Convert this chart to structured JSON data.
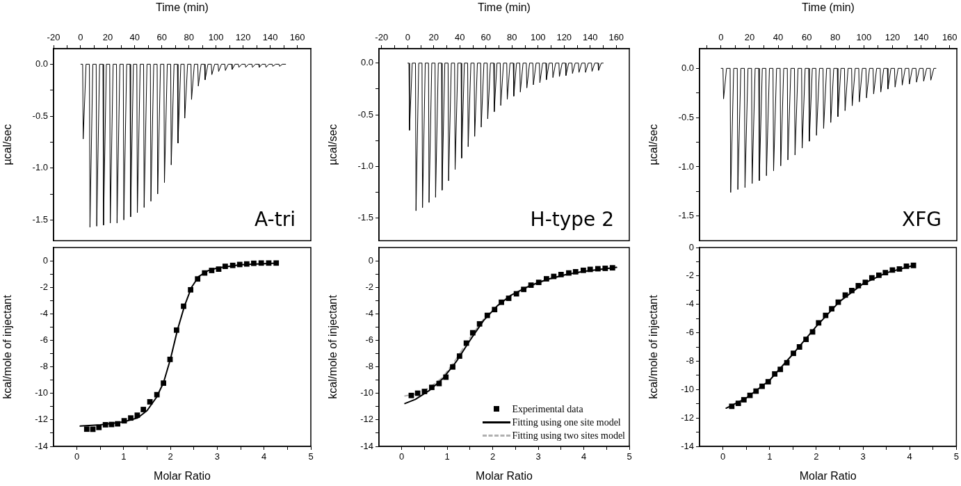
{
  "chart_data": [
    {
      "type": "line",
      "xlabel": "Time (min)",
      "ylabel": "µcal/sec",
      "annotations": [
        "A-tri"
      ],
      "xlim": [
        -20,
        170
      ],
      "ylim": [
        -1.7,
        0.15
      ],
      "xticks": [
        -20,
        {
          "value": -10,
          "label": null
        },
        0,
        {
          "value": 10,
          "label": null
        },
        20,
        {
          "value": 30,
          "label": null
        },
        40,
        {
          "value": 50,
          "label": null
        },
        60,
        {
          "value": 70,
          "label": null
        },
        80,
        {
          "value": 90,
          "label": null
        },
        100,
        {
          "value": 110,
          "label": null
        },
        120,
        {
          "value": 130,
          "label": null
        },
        140,
        {
          "value": 150,
          "label": null
        },
        160
      ],
      "yticks": [
        {
          "value": -1.5,
          "label": "-1.5"
        },
        {
          "value": -1.25,
          "label": null
        },
        {
          "value": -1,
          "label": "-1.0"
        },
        {
          "value": -0.75,
          "label": null
        },
        {
          "value": -0.5,
          "label": "-0.5"
        },
        {
          "value": -0.25,
          "label": null
        },
        {
          "value": 0,
          "label": "0.0"
        }
      ],
      "color": "#000000",
      "marker": "none",
      "x": [
        0,
        1.5,
        1.9,
        4,
        6.5,
        6.9,
        9,
        11.5,
        11.9,
        14,
        16.5,
        16.9,
        19,
        21.5,
        21.9,
        24,
        26.5,
        26.9,
        29,
        31.5,
        31.9,
        34,
        36.5,
        36.9,
        39,
        41.5,
        41.9,
        44,
        46.5,
        46.9,
        49,
        51.5,
        51.9,
        54,
        56.5,
        56.9,
        59,
        61.5,
        61.9,
        64,
        66.5,
        66.9,
        69,
        71.5,
        71.9,
        74,
        76.5,
        76.9,
        79,
        81.5,
        81.9,
        84,
        86.5,
        86.9,
        89,
        91.5,
        91.9,
        94,
        96.5,
        96.9,
        99,
        101.5,
        101.9,
        104,
        106.5,
        106.9,
        109,
        111.5,
        111.9,
        114,
        116.5,
        116.9,
        119,
        121.5,
        121.9,
        124,
        126.5,
        126.9,
        129,
        131.5,
        131.9,
        134,
        136.5,
        136.9,
        139,
        141.5,
        141.9,
        144,
        146.5,
        146.9,
        149,
        151.4
      ],
      "values": [
        0,
        0,
        -0.72,
        0,
        0,
        -1.57,
        0,
        0,
        -1.56,
        0,
        0,
        -1.55,
        0,
        0,
        -1.53,
        0,
        0,
        -1.53,
        0,
        0,
        -1.5,
        0,
        0,
        -1.47,
        0,
        0,
        -1.43,
        0,
        0,
        -1.38,
        0,
        0,
        -1.32,
        0,
        0,
        -1.25,
        0,
        0,
        -1.14,
        0,
        0,
        -0.97,
        0,
        0,
        -0.76,
        0,
        0,
        -0.52,
        0,
        0,
        -0.34,
        0,
        0,
        -0.21,
        0,
        0,
        -0.15,
        0,
        0,
        -0.1,
        0,
        0,
        -0.07,
        0,
        0,
        -0.06,
        0,
        0,
        -0.05,
        0,
        0,
        -0.03,
        0,
        0,
        -0.03,
        0,
        0,
        -0.03,
        0,
        0,
        -0.03,
        0,
        0,
        -0.03,
        0,
        0,
        -0.02,
        0,
        0,
        -0.02,
        0,
        0
      ]
    },
    {
      "type": "line",
      "xlabel": "Time (min)",
      "ylabel": "µcal/sec",
      "annotations": [
        "H-type 2"
      ],
      "xlim": [
        -22,
        170
      ],
      "ylim": [
        -1.72,
        0.14
      ],
      "xticks": [
        -20,
        {
          "value": -10,
          "label": null
        },
        0,
        {
          "value": 10,
          "label": null
        },
        20,
        {
          "value": 30,
          "label": null
        },
        40,
        {
          "value": 50,
          "label": null
        },
        60,
        {
          "value": 70,
          "label": null
        },
        80,
        {
          "value": 90,
          "label": null
        },
        100,
        {
          "value": 110,
          "label": null
        },
        120,
        {
          "value": 130,
          "label": null
        },
        140,
        {
          "value": 150,
          "label": null
        },
        160
      ],
      "yticks": [
        {
          "value": -1.5,
          "label": "-1.5"
        },
        {
          "value": -1.25,
          "label": null
        },
        {
          "value": -1,
          "label": "-1.0"
        },
        {
          "value": -0.75,
          "label": null
        },
        {
          "value": -0.5,
          "label": "-0.5"
        },
        {
          "value": -0.25,
          "label": null
        },
        {
          "value": 0,
          "label": "0.0"
        }
      ],
      "color": "#000000",
      "marker": "none",
      "x": [
        0,
        1,
        1.4,
        3.5,
        6,
        6.4,
        8.5,
        11,
        11.4,
        13.5,
        16,
        16.4,
        18.5,
        21,
        21.4,
        23.5,
        26,
        26.4,
        28.5,
        31,
        31.4,
        33.5,
        36,
        36.4,
        38.5,
        41,
        41.4,
        43.5,
        46,
        46.4,
        48.5,
        51,
        51.4,
        53.5,
        56,
        56.4,
        58.5,
        61,
        61.4,
        63.5,
        66,
        66.4,
        68.5,
        71,
        71.4,
        73.5,
        76,
        76.4,
        78.5,
        81,
        81.4,
        83.5,
        86,
        86.4,
        88.5,
        91,
        91.4,
        93.5,
        96,
        96.4,
        98.5,
        101,
        101.4,
        103.5,
        106,
        106.4,
        108.5,
        111,
        111.4,
        113.5,
        116,
        116.4,
        118.5,
        121,
        121.4,
        123.5,
        126,
        126.4,
        128.5,
        131,
        131.4,
        133.5,
        136,
        136.4,
        138.5,
        141,
        141.4,
        143.5,
        146,
        146.4,
        148.5,
        150
      ],
      "values": [
        0,
        0,
        -0.65,
        0,
        0,
        -1.43,
        0,
        0,
        -1.4,
        0,
        0,
        -1.35,
        0,
        0,
        -1.3,
        0,
        0,
        -1.23,
        0,
        0,
        -1.14,
        0,
        0,
        -1.03,
        0,
        0,
        -0.92,
        0,
        0,
        -0.81,
        0,
        0,
        -0.71,
        0,
        0,
        -0.62,
        0,
        0,
        -0.54,
        0,
        0,
        -0.47,
        0,
        0,
        -0.41,
        0,
        0,
        -0.35,
        0,
        0,
        -0.32,
        0,
        0,
        -0.28,
        0,
        0,
        -0.24,
        0,
        0,
        -0.21,
        0,
        0,
        -0.19,
        0,
        0,
        -0.16,
        0,
        0,
        -0.14,
        0,
        0,
        -0.13,
        0,
        0,
        -0.12,
        0,
        0,
        -0.1,
        0,
        0,
        -0.09,
        0,
        0,
        -0.09,
        0,
        0,
        -0.08,
        0,
        0,
        -0.07,
        0,
        0
      ]
    },
    {
      "type": "line",
      "xlabel": "Time (min)",
      "ylabel": "µcal/sec",
      "annotations": [
        "XFG"
      ],
      "xlim": [
        -15,
        165
      ],
      "ylim": [
        -1.75,
        0.2
      ],
      "xticks": [
        {
          "value": -10,
          "label": null
        },
        0,
        {
          "value": 10,
          "label": null
        },
        20,
        {
          "value": 30,
          "label": null
        },
        40,
        {
          "value": 50,
          "label": null
        },
        60,
        {
          "value": 70,
          "label": null
        },
        80,
        {
          "value": 90,
          "label": null
        },
        100,
        {
          "value": 110,
          "label": null
        },
        120,
        {
          "value": 130,
          "label": null
        },
        140,
        {
          "value": 150,
          "label": null
        },
        160
      ],
      "yticks": [
        {
          "value": -1.5,
          "label": "-1.5"
        },
        {
          "value": -1.25,
          "label": null
        },
        {
          "value": -1,
          "label": "-1.0"
        },
        {
          "value": -0.75,
          "label": null
        },
        {
          "value": -0.5,
          "label": "-0.5"
        },
        {
          "value": -0.25,
          "label": null
        },
        {
          "value": 0,
          "label": "0.0"
        }
      ],
      "color": "#000000",
      "marker": "none",
      "x": [
        0,
        1.4,
        1.8,
        3.9,
        6.4,
        6.8,
        8.9,
        11.4,
        11.8,
        13.9,
        16.4,
        16.8,
        18.9,
        21.4,
        21.8,
        23.9,
        26.4,
        26.8,
        28.9,
        31.4,
        31.8,
        33.9,
        36.4,
        36.8,
        38.9,
        41.4,
        41.8,
        43.9,
        46.4,
        46.8,
        48.9,
        51.4,
        51.8,
        53.9,
        56.4,
        56.8,
        58.9,
        61.4,
        61.8,
        63.9,
        66.4,
        66.8,
        68.9,
        71.4,
        71.8,
        73.9,
        76.4,
        76.8,
        78.9,
        81.4,
        81.8,
        83.9,
        86.4,
        86.8,
        88.9,
        91.4,
        91.8,
        93.9,
        96.4,
        96.8,
        98.9,
        101.4,
        101.8,
        103.9,
        106.4,
        106.8,
        108.9,
        111.4,
        111.8,
        113.9,
        116.4,
        116.8,
        118.9,
        121.4,
        121.8,
        123.9,
        126.4,
        126.8,
        128.9,
        131.4,
        131.8,
        133.9,
        136.4,
        136.8,
        138.9,
        141.4,
        141.8,
        143.9,
        146.4,
        146.8,
        148.9,
        150.4
      ],
      "values": [
        0,
        0,
        -0.31,
        0,
        0,
        -1.26,
        0,
        0,
        -1.23,
        0,
        0,
        -1.21,
        0,
        0,
        -1.17,
        0,
        0,
        -1.14,
        0,
        0,
        -1.09,
        0,
        0,
        -1.04,
        0,
        0,
        -0.99,
        0,
        0,
        -0.93,
        0,
        0,
        -0.88,
        0,
        0,
        -0.81,
        0,
        0,
        -0.74,
        0,
        0,
        -0.68,
        0,
        0,
        -0.61,
        0,
        0,
        -0.55,
        0,
        0,
        -0.49,
        0,
        0,
        -0.43,
        0,
        0,
        -0.38,
        0,
        0,
        -0.34,
        0,
        0,
        -0.3,
        0,
        0,
        -0.26,
        0,
        0,
        -0.24,
        0,
        0,
        -0.21,
        0,
        0,
        -0.19,
        0,
        0,
        -0.17,
        0,
        0,
        -0.16,
        0,
        0,
        -0.14,
        0,
        0,
        -0.13,
        0,
        0,
        -0.12,
        0,
        0
      ]
    },
    {
      "type": "scatter",
      "xlabel": "Molar Ratio",
      "ylabel": "kcal/mole of injectant",
      "xlim": [
        -0.5,
        5
      ],
      "ylim": [
        -14,
        1
      ],
      "xticks": [
        0,
        {
          "value": 0.5,
          "label": null
        },
        1,
        {
          "value": 1.5,
          "label": null
        },
        2,
        {
          "value": 2.5,
          "label": null
        },
        3,
        {
          "value": 3.5,
          "label": null
        },
        4,
        {
          "value": 4.5,
          "label": null
        },
        5
      ],
      "yticks": [
        -14,
        {
          "value": -13,
          "label": null
        },
        -12,
        {
          "value": -11,
          "label": null
        },
        -10,
        {
          "value": -9,
          "label": null
        },
        -8,
        {
          "value": -7,
          "label": null
        },
        -6,
        {
          "value": -5,
          "label": null
        },
        -4,
        {
          "value": -3,
          "label": null
        },
        -2,
        {
          "value": -1,
          "label": null
        },
        0
      ],
      "series": [
        {
          "type": "scatter",
          "color": "#000000",
          "marker": "square",
          "x": [
            0.21,
            0.34,
            0.47,
            0.61,
            0.74,
            0.87,
            1.01,
            1.15,
            1.29,
            1.42,
            1.56,
            1.71,
            1.85,
            1.99,
            2.13,
            2.28,
            2.43,
            2.58,
            2.73,
            2.88,
            3.03,
            3.17,
            3.33,
            3.48,
            3.63,
            3.78,
            3.94,
            4.1,
            4.26
          ],
          "values": [
            -12.7,
            -12.71,
            -12.57,
            -12.37,
            -12.35,
            -12.3,
            -12.07,
            -11.86,
            -11.65,
            -11.22,
            -10.64,
            -10.1,
            -9.23,
            -7.44,
            -5.23,
            -3.43,
            -2.19,
            -1.37,
            -0.92,
            -0.73,
            -0.63,
            -0.42,
            -0.35,
            -0.28,
            -0.24,
            -0.19,
            -0.17,
            -0.17,
            -0.17
          ]
        },
        {
          "type": "line",
          "color": "#000000",
          "x": [
            0.07,
            0.5,
            1.0,
            1.3,
            1.5,
            1.7,
            1.85,
            2.0,
            2.15,
            2.3,
            2.45,
            2.6,
            2.8,
            3.0,
            3.5,
            4.26
          ],
          "values": [
            -12.47,
            -12.38,
            -12.15,
            -11.85,
            -11.3,
            -10.3,
            -9.2,
            -7.4,
            -5.2,
            -3.4,
            -2.0,
            -1.2,
            -0.75,
            -0.55,
            -0.3,
            -0.18
          ]
        }
      ]
    },
    {
      "type": "scatter",
      "xlabel": "Molar Ratio",
      "ylabel": "kcal/mole of injectant",
      "xlim": [
        -0.5,
        5
      ],
      "ylim": [
        -14,
        1
      ],
      "legend": "bottom right",
      "xticks": [
        0,
        {
          "value": 0.5,
          "label": null
        },
        1,
        {
          "value": 1.5,
          "label": null
        },
        2,
        {
          "value": 2.5,
          "label": null
        },
        3,
        {
          "value": 3.5,
          "label": null
        },
        4,
        {
          "value": 4.5,
          "label": null
        },
        5
      ],
      "yticks": [
        -14,
        {
          "value": -13,
          "label": null
        },
        -12,
        {
          "value": -11,
          "label": null
        },
        -10,
        {
          "value": -9,
          "label": null
        },
        -8,
        {
          "value": -7,
          "label": null
        },
        -6,
        {
          "value": -5,
          "label": null
        },
        -4,
        {
          "value": -3,
          "label": null
        },
        -2,
        {
          "value": -1,
          "label": null
        },
        0
      ],
      "series": [
        {
          "type": "scatter",
          "name": "Experimental data",
          "color": "#000000",
          "marker": "square",
          "x": [
            0.21,
            0.35,
            0.5,
            0.66,
            0.82,
            0.97,
            1.12,
            1.27,
            1.42,
            1.56,
            1.71,
            1.88,
            2.04,
            2.19,
            2.35,
            2.52,
            2.68,
            2.84,
            3.01,
            3.18,
            3.34,
            3.5,
            3.67,
            3.82,
            3.99,
            4.14,
            4.31,
            4.47,
            4.63
          ],
          "values": [
            -10.16,
            -9.99,
            -9.86,
            -9.55,
            -9.26,
            -8.78,
            -8.01,
            -7.19,
            -6.21,
            -5.43,
            -4.76,
            -4.12,
            -3.68,
            -3.13,
            -2.83,
            -2.49,
            -2.16,
            -1.84,
            -1.63,
            -1.36,
            -1.18,
            -1.04,
            -0.92,
            -0.83,
            -0.72,
            -0.65,
            -0.6,
            -0.57,
            -0.53
          ]
        },
        {
          "type": "line",
          "name": "Fitting using one site model",
          "color": "#000000",
          "line_style": "solid",
          "x": [
            0.07,
            0.3,
            0.6,
            0.9,
            1.2,
            1.5,
            1.8,
            2.1,
            2.4,
            2.8,
            3.2,
            3.6,
            4.0,
            4.72
          ],
          "values": [
            -10.77,
            -10.45,
            -9.8,
            -8.9,
            -7.6,
            -6.0,
            -4.5,
            -3.4,
            -2.6,
            -1.9,
            -1.4,
            -1.05,
            -0.8,
            -0.5
          ]
        },
        {
          "type": "line",
          "name": "Fitting using two sites model",
          "color": "#b0b0b0",
          "line_style": "dashed",
          "x": [
            0.07,
            0.3,
            0.6,
            0.9,
            1.2,
            1.5,
            1.8,
            2.1,
            2.4,
            2.8,
            3.2,
            3.6,
            4.0,
            4.72
          ],
          "values": [
            -10.2,
            -10.05,
            -9.6,
            -8.8,
            -7.4,
            -5.8,
            -4.4,
            -3.4,
            -2.65,
            -1.95,
            -1.42,
            -1.07,
            -0.82,
            -0.52
          ]
        }
      ]
    },
    {
      "type": "scatter",
      "xlabel": "Molar Ratio",
      "ylabel": "kcal/mole of injectant",
      "xlim": [
        -0.5,
        5
      ],
      "ylim": [
        -14,
        0
      ],
      "xticks": [
        0,
        {
          "value": 0.5,
          "label": null
        },
        1,
        {
          "value": 1.5,
          "label": null
        },
        2,
        {
          "value": 2.5,
          "label": null
        },
        3,
        {
          "value": 3.5,
          "label": null
        },
        4,
        {
          "value": 4.5,
          "label": null
        },
        5
      ],
      "yticks": [
        -14,
        {
          "value": -13,
          "label": null
        },
        -12,
        {
          "value": -11,
          "label": null
        },
        -10,
        {
          "value": -9,
          "label": null
        },
        -8,
        {
          "value": -7,
          "label": null
        },
        -6,
        {
          "value": -5,
          "label": null
        },
        -4,
        {
          "value": -3,
          "label": null
        },
        -2,
        {
          "value": -1,
          "label": null
        },
        0
      ],
      "series": [
        {
          "type": "scatter",
          "color": "#000000",
          "marker": "square",
          "x": [
            0.19,
            0.33,
            0.45,
            0.58,
            0.71,
            0.84,
            0.97,
            1.11,
            1.23,
            1.37,
            1.51,
            1.64,
            1.78,
            1.92,
            2.05,
            2.2,
            2.33,
            2.47,
            2.62,
            2.76,
            2.9,
            3.05,
            3.19,
            3.34,
            3.48,
            3.63,
            3.78,
            3.93,
            4.08
          ],
          "values": [
            -11.18,
            -10.97,
            -10.72,
            -10.41,
            -10.11,
            -9.77,
            -9.45,
            -8.9,
            -8.58,
            -8.11,
            -7.45,
            -7.0,
            -6.47,
            -5.94,
            -5.31,
            -4.78,
            -4.31,
            -3.85,
            -3.35,
            -3.03,
            -2.69,
            -2.45,
            -2.14,
            -1.95,
            -1.77,
            -1.58,
            -1.51,
            -1.32,
            -1.26
          ]
        },
        {
          "type": "line",
          "color": "#000000",
          "x": [
            0.07,
            0.5,
            1.0,
            1.5,
            2.0,
            2.5,
            3.0,
            3.5,
            4.08
          ],
          "values": [
            -11.31,
            -10.6,
            -9.35,
            -7.5,
            -5.55,
            -3.8,
            -2.55,
            -1.78,
            -1.26
          ]
        }
      ]
    }
  ]
}
